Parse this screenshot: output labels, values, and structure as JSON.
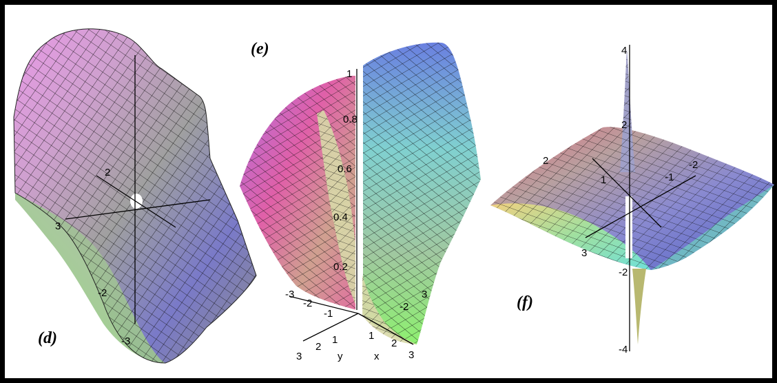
{
  "panels": [
    {
      "label": "(d)",
      "ticks": [
        "2",
        "-2",
        "3",
        "-3"
      ]
    },
    {
      "label": "(e)",
      "ticks_z": [
        "1",
        "0.8",
        "0.6",
        "0.4",
        "0.2"
      ],
      "ticks_y": [
        "-3",
        "-2",
        "-1",
        "1",
        "2",
        "3"
      ],
      "ticks_x": [
        "-2",
        "1",
        "2",
        "3"
      ],
      "axis_y": "y",
      "axis_x": "x",
      "tick_3": "3"
    },
    {
      "label": "(f)",
      "ticks_z": [
        "4",
        "2",
        "-2",
        "-4"
      ],
      "ticks_plane": [
        "2",
        "1",
        "-1",
        "-2",
        "3"
      ]
    }
  ],
  "colors": {
    "border": "#000000",
    "mesh": "#111111",
    "gray": "#9a9a9a",
    "magenta": "#d889d8",
    "blue": "#6c72c8",
    "green": "#8ee07a",
    "yellow": "#e8e88a",
    "cyan": "#86d0d8",
    "pink": "#e070a8"
  }
}
